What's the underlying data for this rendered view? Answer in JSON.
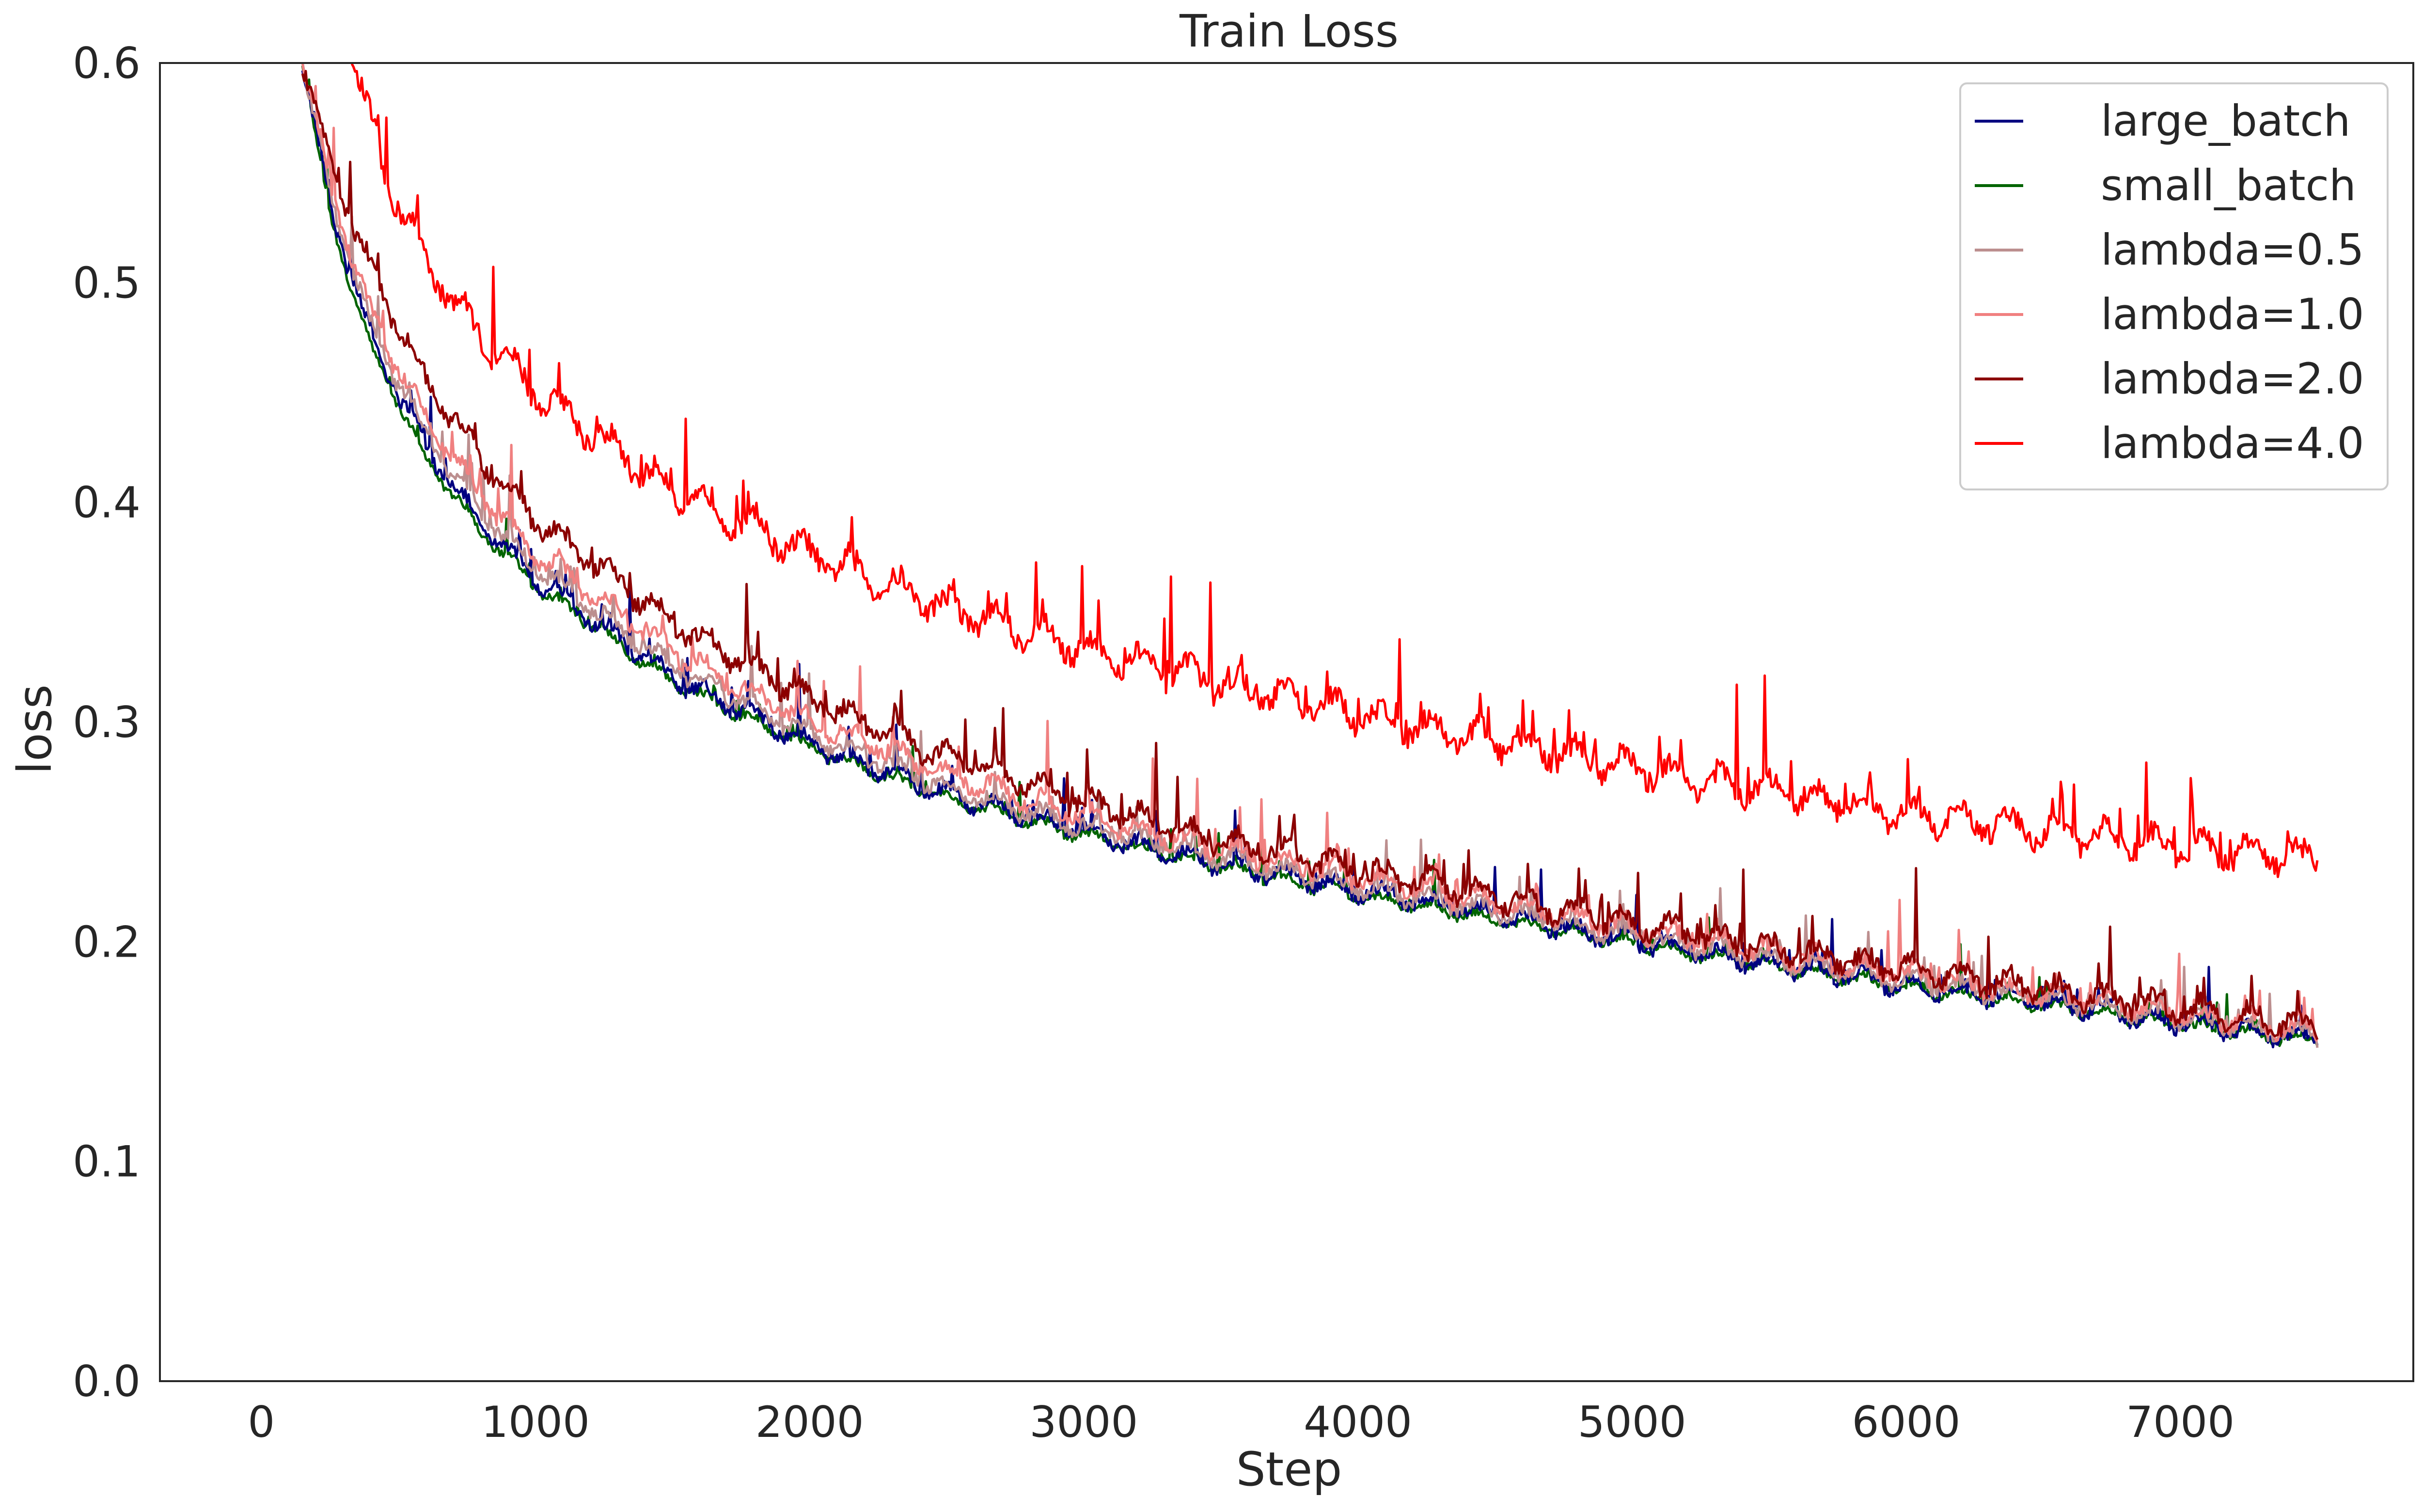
{
  "chart_data": {
    "type": "line",
    "title": "Train Loss",
    "xlabel": "Step",
    "ylabel": "loss",
    "xlim": [
      -370,
      7850
    ],
    "ylim": [
      0.0,
      0.6
    ],
    "xticks": [
      0,
      1000,
      2000,
      3000,
      4000,
      5000,
      6000,
      7000
    ],
    "yticks": [
      0.0,
      0.1,
      0.2,
      0.3,
      0.4,
      0.5,
      0.6
    ],
    "xtick_labels": [
      "0",
      "1000",
      "2000",
      "3000",
      "4000",
      "5000",
      "6000",
      "7000"
    ],
    "ytick_labels": [
      "0.0",
      "0.1",
      "0.2",
      "0.3",
      "0.4",
      "0.5",
      "0.6"
    ],
    "grid": false,
    "legend_position": "top-right",
    "series": [
      {
        "name": "large_batch",
        "color": "#000080",
        "x": [
          150,
          250,
          400,
          600,
          800,
          1000,
          1500,
          2000,
          2500,
          3000,
          3500,
          4000,
          4500,
          5000,
          5500,
          6000,
          6500,
          7000,
          7500
        ],
        "y": [
          0.6,
          0.535,
          0.475,
          0.425,
          0.39,
          0.365,
          0.32,
          0.29,
          0.267,
          0.25,
          0.235,
          0.223,
          0.212,
          0.2,
          0.19,
          0.18,
          0.172,
          0.163,
          0.155
        ]
      },
      {
        "name": "small_batch",
        "color": "#006400",
        "x": [
          150,
          250,
          400,
          600,
          800,
          1000,
          1500,
          2000,
          2500,
          3000,
          3500,
          4000,
          4500,
          5000,
          5500,
          6000,
          6500,
          7000,
          7500
        ],
        "y": [
          0.6,
          0.53,
          0.47,
          0.42,
          0.387,
          0.362,
          0.318,
          0.288,
          0.265,
          0.248,
          0.234,
          0.221,
          0.21,
          0.199,
          0.189,
          0.179,
          0.171,
          0.162,
          0.154
        ]
      },
      {
        "name": "lambda=0.5",
        "color": "#bc8f8f",
        "x": [
          150,
          250,
          400,
          600,
          800,
          1000,
          1500,
          2000,
          2500,
          3000,
          3500,
          4000,
          4500,
          5000,
          5500,
          6000,
          6500,
          7000,
          7500
        ],
        "y": [
          0.6,
          0.54,
          0.48,
          0.43,
          0.395,
          0.37,
          0.325,
          0.294,
          0.27,
          0.252,
          0.238,
          0.225,
          0.214,
          0.202,
          0.192,
          0.182,
          0.174,
          0.165,
          0.157
        ]
      },
      {
        "name": "lambda=1.0",
        "color": "#f08080",
        "x": [
          150,
          250,
          400,
          600,
          800,
          1000,
          1500,
          2000,
          2500,
          3000,
          3500,
          4000,
          4500,
          5000,
          5500,
          6000,
          6500,
          7000,
          7500
        ],
        "y": [
          0.6,
          0.545,
          0.485,
          0.438,
          0.403,
          0.377,
          0.332,
          0.3,
          0.276,
          0.257,
          0.242,
          0.229,
          0.218,
          0.206,
          0.195,
          0.185,
          0.176,
          0.167,
          0.159
        ]
      },
      {
        "name": "lambda=2.0",
        "color": "#8b0000",
        "x": [
          150,
          250,
          400,
          600,
          800,
          1000,
          1500,
          2000,
          2500,
          3000,
          3500,
          4000,
          4500,
          5000,
          5500,
          6000,
          6500,
          7000,
          7500
        ],
        "y": [
          0.6,
          0.555,
          0.505,
          0.455,
          0.42,
          0.392,
          0.345,
          0.31,
          0.284,
          0.263,
          0.246,
          0.232,
          0.22,
          0.208,
          0.197,
          0.187,
          0.178,
          0.169,
          0.161
        ]
      },
      {
        "name": "lambda=4.0",
        "color": "#ff0000",
        "x": [
          330,
          450,
          600,
          800,
          1000,
          1500,
          2000,
          2500,
          3000,
          3500,
          4000,
          4500,
          5000,
          5500,
          6000,
          6500,
          7000,
          7500
        ],
        "y": [
          0.6,
          0.55,
          0.51,
          0.475,
          0.45,
          0.405,
          0.376,
          0.352,
          0.333,
          0.317,
          0.303,
          0.291,
          0.279,
          0.268,
          0.258,
          0.25,
          0.243,
          0.237
        ]
      }
    ]
  }
}
